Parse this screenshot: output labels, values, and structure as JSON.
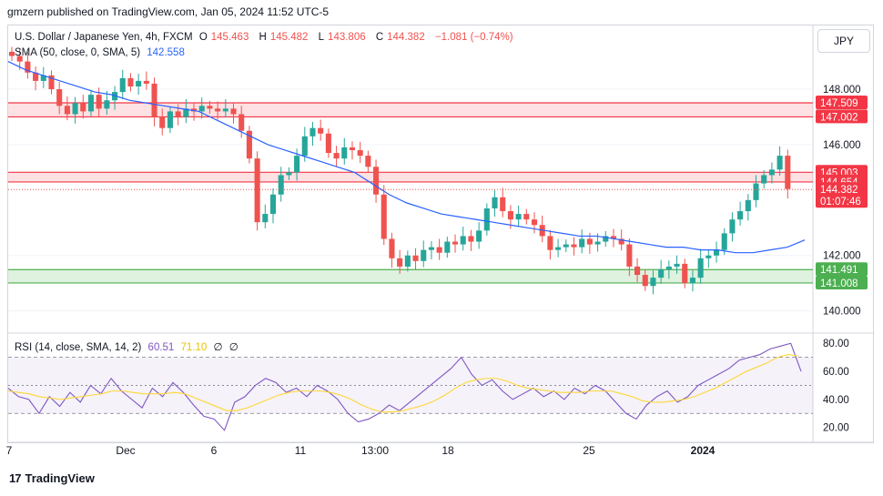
{
  "header": {
    "published": "gmzern published on TradingView.com, Jan 05, 2024 11:52 UTC-5"
  },
  "symbol": {
    "name": "U.S. Dollar / Japanese Yen, 4h, FXCM",
    "o_label": "O",
    "o": "145.463",
    "h_label": "H",
    "h": "145.482",
    "l_label": "L",
    "l": "143.806",
    "c_label": "C",
    "c": "144.382",
    "change": "−1.081 (−0.74%)"
  },
  "sma_legend": {
    "label": "SMA (50, close, 0, SMA, 5)",
    "value": "142.558"
  },
  "rsi_legend": {
    "label": "RSI (14, close, SMA, 14, 2)",
    "v1": "60.51",
    "v2": "71.10",
    "v3": "∅",
    "v4": "∅"
  },
  "currency_button": "JPY",
  "footer": {
    "brand": "TradingView"
  },
  "colors": {
    "up": "#26a69a",
    "down": "#ef5350",
    "sma": "#2962ff",
    "rsi": "#7e57c2",
    "rsi_ma": "#fdd835",
    "resistance_zone": "#f7b8bb",
    "support_zone": "#b7e2bf"
  },
  "chart_data": {
    "type": "candlestick",
    "title": "U.S. Dollar / Japanese Yen, 4h, FXCM",
    "price_axis": {
      "ticks": [
        140.0,
        142.0,
        146.0,
        148.0
      ],
      "ylim": [
        139.2,
        150.3
      ]
    },
    "x_ticks": [
      "7",
      "Dec",
      "6",
      "11",
      "13:00",
      "18",
      "25",
      "2024"
    ],
    "zones": [
      {
        "name": "resistance",
        "upper": 147.509,
        "lower": 147.002,
        "color": "red"
      },
      {
        "name": "pivot",
        "upper": 145.003,
        "lower": 144.654,
        "color": "red"
      },
      {
        "name": "support",
        "upper": 141.491,
        "lower": 141.008,
        "color": "green"
      }
    ],
    "price_labels": [
      {
        "value": 147.509,
        "text": "147.509",
        "type": "red"
      },
      {
        "value": 147.002,
        "text": "147.002",
        "type": "red"
      },
      {
        "value": 145.003,
        "text": "145.003",
        "type": "red"
      },
      {
        "value": 144.654,
        "text": "144.654",
        "type": "red"
      },
      {
        "value": 144.382,
        "text": "144.382",
        "type": "current",
        "countdown": "01:07:46"
      },
      {
        "value": 141.491,
        "text": "141.491",
        "type": "green"
      },
      {
        "value": 141.008,
        "text": "141.008",
        "type": "green"
      }
    ],
    "close_series": [
      149.2,
      149.0,
      148.6,
      148.3,
      148.5,
      148.0,
      147.4,
      147.1,
      147.5,
      147.2,
      147.8,
      147.3,
      147.6,
      147.9,
      148.4,
      148.1,
      148.3,
      148.2,
      147.0,
      146.6,
      147.2,
      147.0,
      147.3,
      147.2,
      147.4,
      147.3,
      147.2,
      147.3,
      147.1,
      146.5,
      145.5,
      143.2,
      143.5,
      144.2,
      144.9,
      145.0,
      145.6,
      146.3,
      146.6,
      146.4,
      145.7,
      145.5,
      145.9,
      145.8,
      145.6,
      145.2,
      144.2,
      142.6,
      141.9,
      141.6,
      142.0,
      141.8,
      142.2,
      142.3,
      142.1,
      142.5,
      142.4,
      142.7,
      142.5,
      142.9,
      143.7,
      144.1,
      143.6,
      143.3,
      143.5,
      143.3,
      143.1,
      142.7,
      142.2,
      142.3,
      142.4,
      142.3,
      142.6,
      142.4,
      142.5,
      142.7,
      142.6,
      142.4,
      141.6,
      141.3,
      140.9,
      141.2,
      141.5,
      141.6,
      141.7,
      141.0,
      141.2,
      141.9,
      142.0,
      142.2,
      142.8,
      143.3,
      143.6,
      144.0,
      144.6,
      144.9,
      145.1,
      145.6,
      144.4
    ],
    "sma_series": [
      149.0,
      148.7,
      148.5,
      148.3,
      148.1,
      147.9,
      147.8,
      147.6,
      147.5,
      147.4,
      147.3,
      147.2,
      146.9,
      146.6,
      146.3,
      146.0,
      145.8,
      145.6,
      145.4,
      145.2,
      145.0,
      144.6,
      144.2,
      143.9,
      143.7,
      143.5,
      143.4,
      143.3,
      143.2,
      143.1,
      143.0,
      142.9,
      142.8,
      142.7,
      142.7,
      142.6,
      142.5,
      142.4,
      142.3,
      142.3,
      142.2,
      142.2,
      142.1,
      142.1,
      142.2,
      142.3,
      142.56
    ],
    "rsi": {
      "ticks": [
        20.0,
        40.0,
        60.0,
        80.0
      ],
      "levels": [
        70,
        50,
        30
      ],
      "ylim": [
        12,
        86
      ],
      "rsi_series": [
        48,
        42,
        40,
        30,
        42,
        35,
        45,
        38,
        50,
        44,
        55,
        46,
        40,
        34,
        48,
        42,
        52,
        45,
        36,
        28,
        26,
        18,
        38,
        42,
        50,
        55,
        52,
        45,
        48,
        42,
        50,
        46,
        40,
        30,
        24,
        26,
        30,
        36,
        32,
        38,
        44,
        50,
        56,
        62,
        70,
        58,
        50,
        54,
        46,
        40,
        44,
        48,
        42,
        46,
        40,
        48,
        44,
        50,
        46,
        38,
        30,
        26,
        36,
        42,
        46,
        38,
        42,
        50,
        54,
        58,
        62,
        68,
        70,
        72,
        76,
        78,
        80,
        60
      ],
      "rsi_ma_series": [
        46,
        45,
        44,
        42,
        41,
        40,
        41,
        42,
        43,
        44,
        46,
        46,
        45,
        44,
        44,
        44,
        45,
        44,
        41,
        38,
        35,
        32,
        32,
        34,
        37,
        40,
        43,
        45,
        46,
        46,
        46,
        45,
        43,
        40,
        36,
        33,
        31,
        31,
        32,
        34,
        36,
        39,
        43,
        48,
        52,
        54,
        55,
        55,
        53,
        50,
        48,
        47,
        46,
        45,
        45,
        45,
        46,
        46,
        46,
        44,
        42,
        39,
        38,
        38,
        39,
        40,
        42,
        45,
        48,
        52,
        56,
        60,
        63,
        66,
        70,
        72,
        71
      ]
    }
  }
}
